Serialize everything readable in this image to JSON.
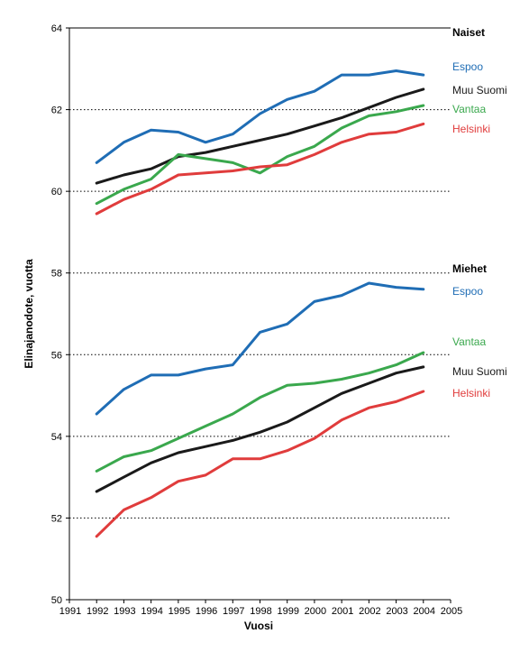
{
  "chart_data": {
    "type": "line",
    "xlabel": "Vuosi",
    "ylabel": "Elinajanodote, vuotta",
    "xlim": [
      1991,
      2005
    ],
    "ylim": [
      50,
      64
    ],
    "x_ticks": [
      "1991",
      "1992",
      "1993",
      "1994",
      "1995",
      "1996",
      "1997",
      "1998",
      "1999",
      "2000",
      "2001",
      "2002",
      "2003",
      "2004",
      "2005"
    ],
    "y_ticks": [
      "50",
      "52",
      "54",
      "56",
      "58",
      "60",
      "62",
      "64"
    ],
    "grid": "horizontal dotted at 54, 56, 58, 60, 62",
    "groups": [
      {
        "title": "Naiset",
        "series": [
          {
            "name": "Espoo",
            "color": "#1f6db5",
            "x": [
              1992,
              1993,
              1994,
              1995,
              1996,
              1997,
              1998,
              1999,
              2000,
              2001,
              2002,
              2003,
              2004
            ],
            "values": [
              60.7,
              61.2,
              61.5,
              61.45,
              61.2,
              61.4,
              61.9,
              62.25,
              62.45,
              62.85,
              62.85,
              62.95,
              62.85
            ]
          },
          {
            "name": "Muu Suomi",
            "color": "#1a1a1a",
            "x": [
              1992,
              1993,
              1994,
              1995,
              1996,
              1997,
              1998,
              1999,
              2000,
              2001,
              2002,
              2003,
              2004
            ],
            "values": [
              60.2,
              60.4,
              60.55,
              60.85,
              60.95,
              61.1,
              61.25,
              61.4,
              61.6,
              61.8,
              62.05,
              62.3,
              62.5
            ]
          },
          {
            "name": "Vantaa",
            "color": "#3aa84d",
            "x": [
              1992,
              1993,
              1994,
              1995,
              1996,
              1997,
              1998,
              1999,
              2000,
              2001,
              2002,
              2003,
              2004
            ],
            "values": [
              59.7,
              60.05,
              60.3,
              60.9,
              60.8,
              60.7,
              60.45,
              60.85,
              61.1,
              61.55,
              61.85,
              61.95,
              62.1
            ]
          },
          {
            "name": "Helsinki",
            "color": "#e03c3c",
            "x": [
              1992,
              1993,
              1994,
              1995,
              1996,
              1997,
              1998,
              1999,
              2000,
              2001,
              2002,
              2003,
              2004
            ],
            "values": [
              59.45,
              59.8,
              60.05,
              60.4,
              60.45,
              60.5,
              60.6,
              60.65,
              60.9,
              61.2,
              61.4,
              61.45,
              61.65
            ]
          }
        ]
      },
      {
        "title": "Miehet",
        "series": [
          {
            "name": "Espoo",
            "color": "#1f6db5",
            "x": [
              1992,
              1993,
              1994,
              1995,
              1996,
              1997,
              1998,
              1999,
              2000,
              2001,
              2002,
              2003,
              2004
            ],
            "values": [
              54.55,
              55.15,
              55.5,
              55.5,
              55.65,
              55.75,
              56.55,
              56.75,
              57.3,
              57.45,
              57.75,
              57.65,
              57.6
            ]
          },
          {
            "name": "Vantaa",
            "color": "#3aa84d",
            "x": [
              1992,
              1993,
              1994,
              1995,
              1996,
              1997,
              1998,
              1999,
              2000,
              2001,
              2002,
              2003,
              2004
            ],
            "values": [
              53.15,
              53.5,
              53.65,
              53.95,
              54.25,
              54.55,
              54.95,
              55.25,
              55.3,
              55.4,
              55.55,
              55.75,
              56.05
            ]
          },
          {
            "name": "Muu Suomi",
            "color": "#1a1a1a",
            "x": [
              1992,
              1993,
              1994,
              1995,
              1996,
              1997,
              1998,
              1999,
              2000,
              2001,
              2002,
              2003,
              2004
            ],
            "values": [
              52.65,
              53.0,
              53.35,
              53.6,
              53.75,
              53.9,
              54.1,
              54.35,
              54.7,
              55.05,
              55.3,
              55.55,
              55.7
            ]
          },
          {
            "name": "Helsinki",
            "color": "#e03c3c",
            "x": [
              1992,
              1993,
              1994,
              1995,
              1996,
              1997,
              1998,
              1999,
              2000,
              2001,
              2002,
              2003,
              2004
            ],
            "values": [
              51.55,
              52.2,
              52.5,
              52.9,
              53.05,
              53.45,
              53.45,
              53.65,
              53.95,
              54.4,
              54.7,
              54.85,
              55.1
            ]
          }
        ]
      }
    ]
  }
}
